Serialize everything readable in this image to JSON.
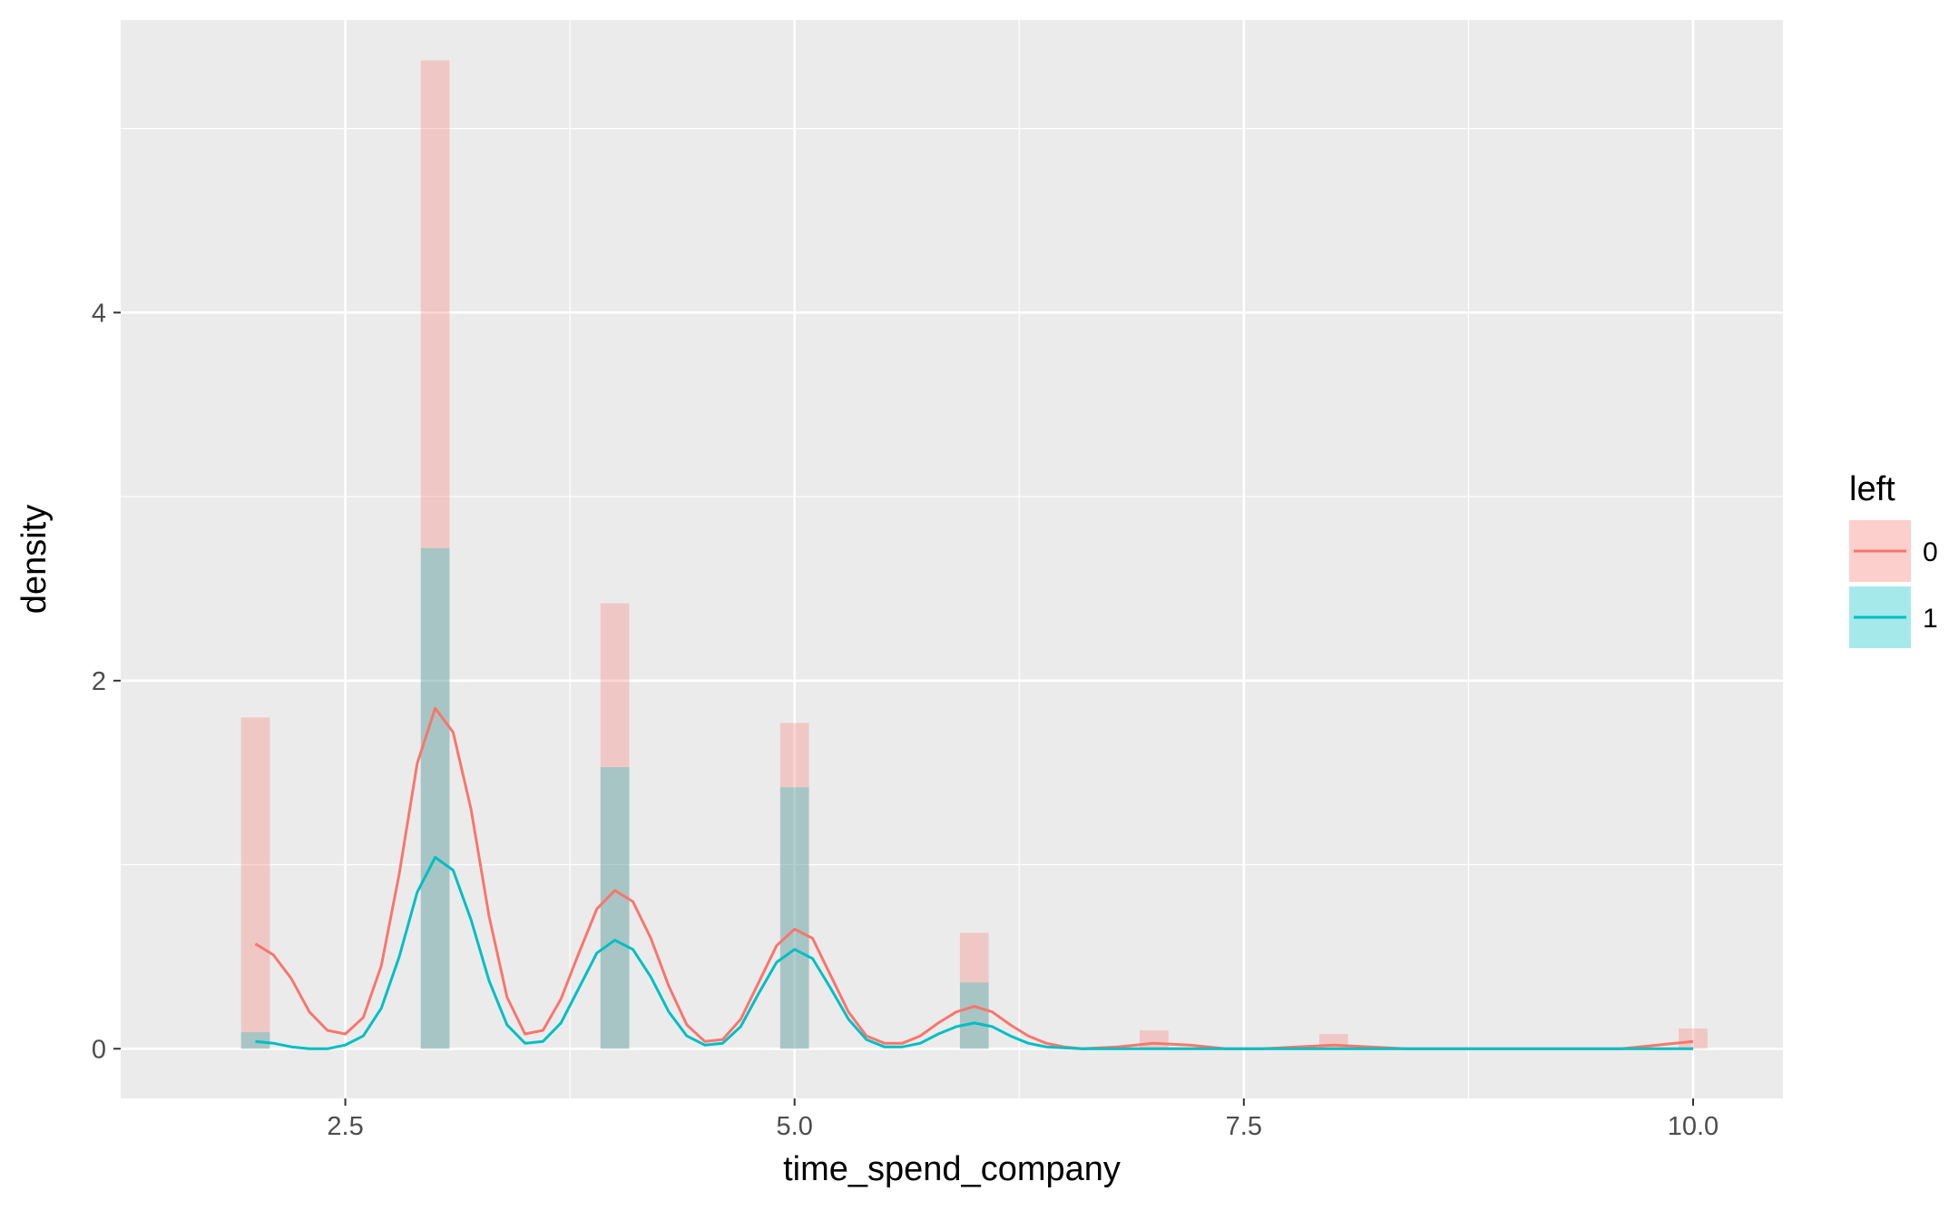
{
  "chart_data": {
    "type": "bar",
    "title": "",
    "xlabel": "time_spend_company",
    "ylabel": "density",
    "xlim": [
      1.25,
      10.5
    ],
    "ylim": [
      -0.27,
      5.59
    ],
    "x_ticks": [
      {
        "value": 2.5,
        "label": "2.5"
      },
      {
        "value": 5.0,
        "label": "5.0"
      },
      {
        "value": 7.5,
        "label": "7.5"
      },
      {
        "value": 10.0,
        "label": "10.0"
      }
    ],
    "x_minor": [
      3.75,
      6.25,
      8.75
    ],
    "y_ticks": [
      {
        "value": 0,
        "label": "0"
      },
      {
        "value": 2,
        "label": "2"
      },
      {
        "value": 4,
        "label": "4"
      }
    ],
    "y_minor": [
      1,
      3,
      5
    ],
    "grid": true,
    "panel_background": "#ebebeb",
    "bar_width": 0.16,
    "legend": {
      "title": "left",
      "position": "right",
      "entries": [
        {
          "label": "0",
          "fill": "#f8766d",
          "line": "#f8766d"
        },
        {
          "label": "1",
          "fill": "#00bfc4",
          "line": "#00bfc4"
        }
      ]
    },
    "series": [
      {
        "name": "0",
        "color": "#f8766d",
        "bar_opacity": 0.3,
        "histogram": [
          {
            "x": 2,
            "density": 1.8
          },
          {
            "x": 3,
            "density": 5.37
          },
          {
            "x": 4,
            "density": 2.42
          },
          {
            "x": 5,
            "density": 1.77
          },
          {
            "x": 6,
            "density": 0.63
          },
          {
            "x": 7,
            "density": 0.1
          },
          {
            "x": 8,
            "density": 0.08
          },
          {
            "x": 10,
            "density": 0.11
          }
        ],
        "density_curve": [
          [
            2.0,
            0.57
          ],
          [
            2.1,
            0.51
          ],
          [
            2.2,
            0.38
          ],
          [
            2.3,
            0.2
          ],
          [
            2.4,
            0.1
          ],
          [
            2.5,
            0.08
          ],
          [
            2.6,
            0.17
          ],
          [
            2.7,
            0.45
          ],
          [
            2.8,
            0.95
          ],
          [
            2.9,
            1.55
          ],
          [
            3.0,
            1.85
          ],
          [
            3.1,
            1.72
          ],
          [
            3.2,
            1.3
          ],
          [
            3.3,
            0.72
          ],
          [
            3.4,
            0.28
          ],
          [
            3.5,
            0.08
          ],
          [
            3.6,
            0.1
          ],
          [
            3.7,
            0.27
          ],
          [
            3.8,
            0.52
          ],
          [
            3.9,
            0.76
          ],
          [
            4.0,
            0.86
          ],
          [
            4.1,
            0.8
          ],
          [
            4.2,
            0.6
          ],
          [
            4.3,
            0.34
          ],
          [
            4.4,
            0.13
          ],
          [
            4.5,
            0.04
          ],
          [
            4.6,
            0.05
          ],
          [
            4.7,
            0.16
          ],
          [
            4.8,
            0.36
          ],
          [
            4.9,
            0.56
          ],
          [
            5.0,
            0.65
          ],
          [
            5.1,
            0.6
          ],
          [
            5.2,
            0.4
          ],
          [
            5.3,
            0.2
          ],
          [
            5.4,
            0.07
          ],
          [
            5.5,
            0.03
          ],
          [
            5.6,
            0.03
          ],
          [
            5.7,
            0.07
          ],
          [
            5.8,
            0.14
          ],
          [
            5.9,
            0.2
          ],
          [
            6.0,
            0.23
          ],
          [
            6.1,
            0.2
          ],
          [
            6.2,
            0.13
          ],
          [
            6.3,
            0.07
          ],
          [
            6.4,
            0.03
          ],
          [
            6.5,
            0.01
          ],
          [
            6.6,
            0.0
          ],
          [
            6.8,
            0.01
          ],
          [
            7.0,
            0.03
          ],
          [
            7.2,
            0.02
          ],
          [
            7.4,
            0.0
          ],
          [
            7.6,
            0.0
          ],
          [
            7.8,
            0.01
          ],
          [
            8.0,
            0.02
          ],
          [
            8.2,
            0.01
          ],
          [
            8.4,
            0.0
          ],
          [
            8.8,
            0.0
          ],
          [
            9.2,
            0.0
          ],
          [
            9.6,
            0.0
          ],
          [
            9.8,
            0.02
          ],
          [
            10.0,
            0.04
          ]
        ]
      },
      {
        "name": "1",
        "color": "#00bfc4",
        "bar_opacity": 0.3,
        "histogram": [
          {
            "x": 2,
            "density": 0.09
          },
          {
            "x": 3,
            "density": 2.72
          },
          {
            "x": 4,
            "density": 1.53
          },
          {
            "x": 5,
            "density": 1.42
          },
          {
            "x": 6,
            "density": 0.36
          }
        ],
        "density_curve": [
          [
            2.0,
            0.04
          ],
          [
            2.1,
            0.03
          ],
          [
            2.2,
            0.01
          ],
          [
            2.3,
            0.0
          ],
          [
            2.4,
            0.0
          ],
          [
            2.5,
            0.02
          ],
          [
            2.6,
            0.07
          ],
          [
            2.7,
            0.22
          ],
          [
            2.8,
            0.5
          ],
          [
            2.9,
            0.85
          ],
          [
            3.0,
            1.04
          ],
          [
            3.1,
            0.97
          ],
          [
            3.2,
            0.7
          ],
          [
            3.3,
            0.37
          ],
          [
            3.4,
            0.13
          ],
          [
            3.5,
            0.03
          ],
          [
            3.6,
            0.04
          ],
          [
            3.7,
            0.14
          ],
          [
            3.8,
            0.33
          ],
          [
            3.9,
            0.52
          ],
          [
            4.0,
            0.59
          ],
          [
            4.1,
            0.54
          ],
          [
            4.2,
            0.39
          ],
          [
            4.3,
            0.2
          ],
          [
            4.4,
            0.07
          ],
          [
            4.5,
            0.02
          ],
          [
            4.6,
            0.03
          ],
          [
            4.7,
            0.12
          ],
          [
            4.8,
            0.3
          ],
          [
            4.9,
            0.47
          ],
          [
            5.0,
            0.54
          ],
          [
            5.1,
            0.49
          ],
          [
            5.2,
            0.33
          ],
          [
            5.3,
            0.16
          ],
          [
            5.4,
            0.05
          ],
          [
            5.5,
            0.01
          ],
          [
            5.6,
            0.01
          ],
          [
            5.7,
            0.03
          ],
          [
            5.8,
            0.08
          ],
          [
            5.9,
            0.12
          ],
          [
            6.0,
            0.14
          ],
          [
            6.1,
            0.12
          ],
          [
            6.2,
            0.07
          ],
          [
            6.3,
            0.03
          ],
          [
            6.4,
            0.01
          ],
          [
            6.6,
            0.0
          ],
          [
            7.0,
            0.0
          ],
          [
            8.0,
            0.0
          ],
          [
            9.0,
            0.0
          ],
          [
            10.0,
            0.0
          ]
        ]
      }
    ]
  }
}
